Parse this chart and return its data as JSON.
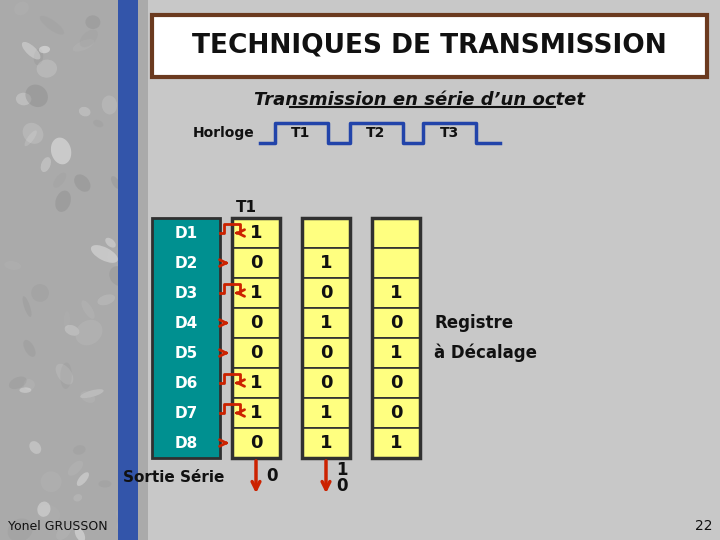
{
  "title": "TECHNIQUES DE TRANSMISSION",
  "subtitle": "Transmission en série d’un octet",
  "horloge_label": "Horloge",
  "clock_labels": [
    "T1",
    "T2",
    "T3"
  ],
  "t1_label": "T1",
  "d_labels": [
    "D1",
    "D2",
    "D3",
    "D4",
    "D5",
    "D6",
    "D7",
    "D8"
  ],
  "col1_values": [
    "1",
    "0",
    "1",
    "0",
    "0",
    "1",
    "1",
    "0"
  ],
  "col2_values": [
    "",
    "1",
    "0",
    "1",
    "0",
    "0",
    "1",
    "1"
  ],
  "col3_values": [
    "",
    "",
    "1",
    "0",
    "1",
    "0",
    "0",
    "1"
  ],
  "sortie_serie_label": "Sortie Série",
  "sortie_col2": "0",
  "sortie_col3_1": "1",
  "sortie_col3_0": "0",
  "registre_label": "Registre\nà Décalage",
  "page_num": "22",
  "author": "Yonel GRUSSON",
  "bg_color": "#c8c8c8",
  "teal_color": "#009090",
  "yellow_color": "#ffff80",
  "border_color": "#303030",
  "red_arrow_color": "#cc2200",
  "clock_color": "#2244aa",
  "title_box_bg": "#ffffff",
  "title_border_color": "#6b3a1f",
  "d_pulse_pattern": [
    true,
    false,
    true,
    false,
    false,
    true,
    true,
    false
  ]
}
